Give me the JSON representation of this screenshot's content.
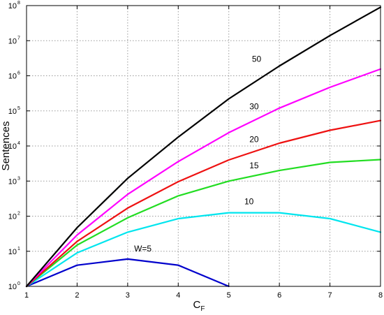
{
  "chart_data": {
    "type": "line",
    "xlabel": "C",
    "xlabel_sub": "F",
    "ylabel": "Sentences",
    "xlim": [
      1,
      8
    ],
    "ylim_log10": [
      0,
      8
    ],
    "y_scale": "log",
    "grid": true,
    "x_ticks": [
      1,
      2,
      3,
      4,
      5,
      6,
      7,
      8
    ],
    "y_ticks": [
      {
        "base": "10",
        "exp": "0"
      },
      {
        "base": "10",
        "exp": "1"
      },
      {
        "base": "10",
        "exp": "2"
      },
      {
        "base": "10",
        "exp": "3"
      },
      {
        "base": "10",
        "exp": "4"
      },
      {
        "base": "10",
        "exp": "5"
      },
      {
        "base": "10",
        "exp": "6"
      },
      {
        "base": "10",
        "exp": "7"
      },
      {
        "base": "10",
        "exp": "8"
      }
    ],
    "series": [
      {
        "name": "W=5",
        "color": "#0000cc",
        "x": [
          1,
          2,
          3,
          4,
          5
        ],
        "y": [
          1,
          4,
          6,
          4,
          1
        ],
        "label_at": [
          3.3,
          10
        ]
      },
      {
        "name": "10",
        "color": "#00e5ee",
        "x": [
          1,
          2,
          3,
          4,
          5,
          6,
          7,
          8
        ],
        "y": [
          1,
          9,
          35,
          85,
          125,
          125,
          85,
          35
        ],
        "label_at": [
          5.4,
          220
        ]
      },
      {
        "name": "15",
        "color": "#22dd22",
        "x": [
          1,
          2,
          3,
          4,
          5,
          6,
          7,
          8
        ],
        "y": [
          1,
          15,
          90,
          380,
          1000,
          2000,
          3400,
          4100
        ],
        "label_at": [
          5.5,
          2300
        ]
      },
      {
        "name": "20",
        "color": "#ee1111",
        "x": [
          1,
          2,
          3,
          4,
          5,
          6,
          7,
          8
        ],
        "y": [
          1,
          19,
          170,
          960,
          4000,
          12000,
          28000,
          53000
        ],
        "label_at": [
          5.5,
          13000
        ]
      },
      {
        "name": "30",
        "color": "#ff00ff",
        "x": [
          1,
          2,
          3,
          4,
          5,
          6,
          7,
          8
        ],
        "y": [
          1,
          29,
          420,
          3600,
          24000,
          120000,
          470000,
          1550000
        ],
        "label_at": [
          5.5,
          110000
        ]
      },
      {
        "name": "50",
        "color": "#000000",
        "x": [
          1,
          2,
          3,
          4,
          5,
          6,
          7,
          8
        ],
        "y": [
          1,
          47,
          1200,
          18000,
          220000,
          1900000,
          14000000,
          90000000
        ],
        "label_at": [
          5.55,
          2500000
        ]
      }
    ]
  }
}
